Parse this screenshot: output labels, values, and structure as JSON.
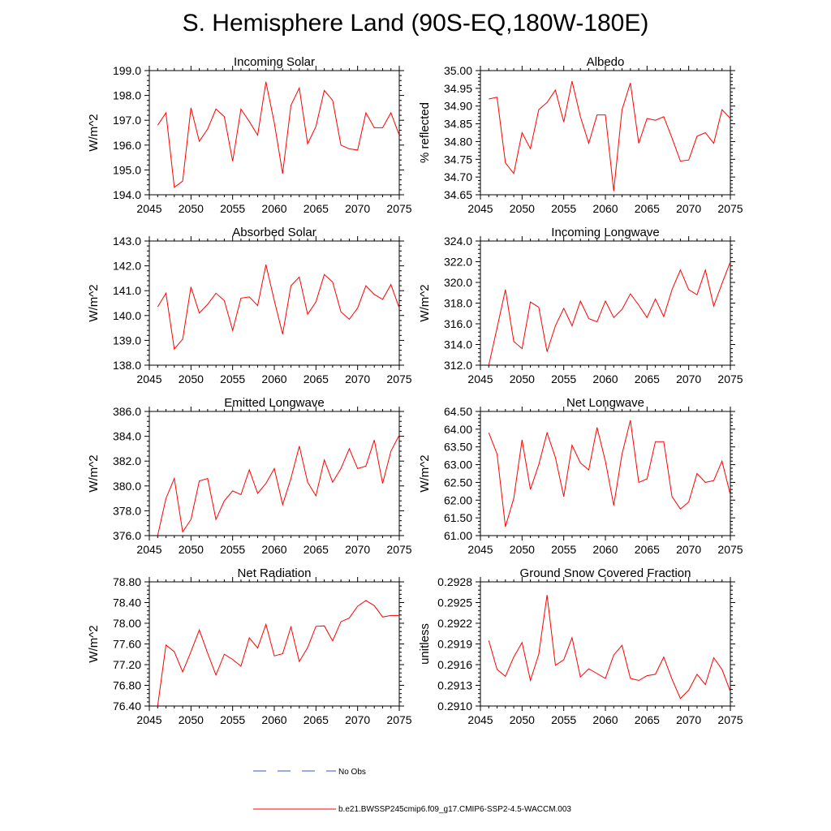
{
  "title": "S. Hemisphere Land (90S-EQ,180W-180E)",
  "colors": {
    "series": "#ff0000",
    "obs": "#3355cc",
    "axis": "#000000"
  },
  "legend": {
    "obs_label": "No Obs",
    "series_label": "b.e21.BWSSP245cmip6.f09_g17.CMIP6-SSP2-4.5-WACCM.003"
  },
  "chart_data": [
    {
      "type": "line",
      "title": "Incoming Solar",
      "ylabel": "W/m^2",
      "xlim": [
        2045,
        2075
      ],
      "ylim": [
        194.0,
        199.0
      ],
      "yticks": [
        "194.0",
        "195.0",
        "196.0",
        "197.0",
        "198.0",
        "199.0"
      ],
      "xticks": [
        "2045",
        "2050",
        "2055",
        "2060",
        "2065",
        "2070",
        "2075"
      ],
      "x": [
        2046,
        2047,
        2048,
        2049,
        2050,
        2051,
        2052,
        2053,
        2054,
        2055,
        2056,
        2057,
        2058,
        2059,
        2060,
        2061,
        2062,
        2063,
        2064,
        2065,
        2066,
        2067,
        2068,
        2069,
        2070,
        2071,
        2072,
        2073,
        2074,
        2075
      ],
      "values": [
        196.8,
        197.3,
        194.3,
        194.55,
        197.5,
        196.15,
        196.65,
        197.45,
        197.15,
        195.35,
        197.45,
        196.95,
        196.4,
        198.55,
        196.9,
        194.85,
        197.6,
        198.3,
        196.05,
        196.75,
        198.2,
        197.8,
        196.0,
        195.85,
        195.8,
        197.3,
        196.7,
        196.7,
        197.3,
        196.4
      ]
    },
    {
      "type": "line",
      "title": "Albedo",
      "ylabel": "% reflected",
      "xlim": [
        2045,
        2075
      ],
      "ylim": [
        34.65,
        35.0
      ],
      "yticks": [
        "34.65",
        "34.70",
        "34.75",
        "34.80",
        "34.85",
        "34.90",
        "34.95",
        "35.00"
      ],
      "xticks": [
        "2045",
        "2050",
        "2055",
        "2060",
        "2065",
        "2070",
        "2075"
      ],
      "x": [
        2046,
        2047,
        2048,
        2049,
        2050,
        2051,
        2052,
        2053,
        2054,
        2055,
        2056,
        2057,
        2058,
        2059,
        2060,
        2061,
        2062,
        2063,
        2064,
        2065,
        2066,
        2067,
        2068,
        2069,
        2070,
        2071,
        2072,
        2073,
        2074,
        2075
      ],
      "values": [
        34.92,
        34.925,
        34.74,
        34.71,
        34.825,
        34.78,
        34.89,
        34.91,
        34.945,
        34.855,
        34.97,
        34.87,
        34.795,
        34.875,
        34.875,
        34.66,
        34.89,
        34.965,
        34.795,
        34.865,
        34.86,
        34.87,
        34.81,
        34.745,
        34.748,
        34.815,
        34.825,
        34.795,
        34.89,
        34.865
      ]
    },
    {
      "type": "line",
      "title": "Absorbed Solar",
      "ylabel": "W/m^2",
      "xlim": [
        2045,
        2075
      ],
      "ylim": [
        138.0,
        143.0
      ],
      "yticks": [
        "138.0",
        "139.0",
        "140.0",
        "141.0",
        "142.0",
        "143.0"
      ],
      "xticks": [
        "2045",
        "2050",
        "2055",
        "2060",
        "2065",
        "2070",
        "2075"
      ],
      "x": [
        2046,
        2047,
        2048,
        2049,
        2050,
        2051,
        2052,
        2053,
        2054,
        2055,
        2056,
        2057,
        2058,
        2059,
        2060,
        2061,
        2062,
        2063,
        2064,
        2065,
        2066,
        2067,
        2068,
        2069,
        2070,
        2071,
        2072,
        2073,
        2074,
        2075
      ],
      "values": [
        140.35,
        140.9,
        138.65,
        139.05,
        141.15,
        140.1,
        140.45,
        140.9,
        140.6,
        139.4,
        140.7,
        140.75,
        140.4,
        142.05,
        140.6,
        139.25,
        141.2,
        141.55,
        140.05,
        140.55,
        141.65,
        141.35,
        140.15,
        139.85,
        140.3,
        141.2,
        140.85,
        140.65,
        141.25,
        140.3
      ]
    },
    {
      "type": "line",
      "title": "Incoming Longwave",
      "ylabel": "W/m^2",
      "xlim": [
        2045,
        2075
      ],
      "ylim": [
        312.0,
        324.0
      ],
      "yticks": [
        "312.0",
        "314.0",
        "316.0",
        "318.0",
        "320.0",
        "322.0",
        "324.0"
      ],
      "xticks": [
        "2045",
        "2050",
        "2055",
        "2060",
        "2065",
        "2070",
        "2075"
      ],
      "x": [
        2046,
        2047,
        2048,
        2049,
        2050,
        2051,
        2052,
        2053,
        2054,
        2055,
        2056,
        2057,
        2058,
        2059,
        2060,
        2061,
        2062,
        2063,
        2064,
        2065,
        2066,
        2067,
        2068,
        2069,
        2070,
        2071,
        2072,
        2073,
        2074,
        2075
      ],
      "values": [
        312.0,
        315.6,
        319.3,
        314.3,
        313.6,
        318.1,
        317.6,
        313.3,
        315.8,
        317.5,
        315.8,
        318.2,
        316.5,
        316.2,
        318.2,
        316.6,
        317.4,
        318.9,
        317.8,
        316.6,
        318.4,
        316.7,
        319.3,
        321.2,
        319.3,
        318.8,
        321.2,
        317.7,
        319.9,
        322.0
      ]
    },
    {
      "type": "line",
      "title": "Emitted Longwave",
      "ylabel": "W/m^2",
      "xlim": [
        2045,
        2075
      ],
      "ylim": [
        376.0,
        386.0
      ],
      "yticks": [
        "376.0",
        "378.0",
        "380.0",
        "382.0",
        "384.0",
        "386.0"
      ],
      "xticks": [
        "2045",
        "2050",
        "2055",
        "2060",
        "2065",
        "2070",
        "2075"
      ],
      "x": [
        2046,
        2047,
        2048,
        2049,
        2050,
        2051,
        2052,
        2053,
        2054,
        2055,
        2056,
        2057,
        2058,
        2059,
        2060,
        2061,
        2062,
        2063,
        2064,
        2065,
        2066,
        2067,
        2068,
        2069,
        2070,
        2071,
        2072,
        2073,
        2074,
        2075
      ],
      "values": [
        376.0,
        379.0,
        380.6,
        376.3,
        377.3,
        380.4,
        380.6,
        377.3,
        378.8,
        379.6,
        379.3,
        381.3,
        379.4,
        380.2,
        381.4,
        378.5,
        380.6,
        383.2,
        380.3,
        379.2,
        382.1,
        380.3,
        381.4,
        383.0,
        381.4,
        381.6,
        383.7,
        380.2,
        382.8,
        384.1
      ]
    },
    {
      "type": "line",
      "title": "Net Longwave",
      "ylabel": "W/m^2",
      "xlim": [
        2045,
        2075
      ],
      "ylim": [
        61.0,
        64.5
      ],
      "yticks": [
        "61.00",
        "61.50",
        "62.00",
        "62.50",
        "63.00",
        "63.50",
        "64.00",
        "64.50"
      ],
      "xticks": [
        "2045",
        "2050",
        "2055",
        "2060",
        "2065",
        "2070",
        "2075"
      ],
      "x": [
        2046,
        2047,
        2048,
        2049,
        2050,
        2051,
        2052,
        2053,
        2054,
        2055,
        2056,
        2057,
        2058,
        2059,
        2060,
        2061,
        2062,
        2063,
        2064,
        2065,
        2066,
        2067,
        2068,
        2069,
        2070,
        2071,
        2072,
        2073,
        2074,
        2075
      ],
      "values": [
        63.9,
        63.3,
        61.25,
        62.05,
        63.7,
        62.3,
        63.0,
        63.9,
        63.2,
        62.1,
        63.55,
        63.05,
        62.85,
        64.05,
        63.1,
        61.85,
        63.3,
        64.25,
        62.5,
        62.6,
        63.65,
        63.65,
        62.1,
        61.75,
        61.95,
        62.75,
        62.5,
        62.55,
        63.1,
        62.15
      ]
    },
    {
      "type": "line",
      "title": "Net Radiation",
      "ylabel": "W/m^2",
      "xlim": [
        2045,
        2075
      ],
      "ylim": [
        76.4,
        78.8
      ],
      "yticks": [
        "76.40",
        "76.80",
        "77.20",
        "77.60",
        "78.00",
        "78.40",
        "78.80"
      ],
      "xticks": [
        "2045",
        "2050",
        "2055",
        "2060",
        "2065",
        "2070",
        "2075"
      ],
      "x": [
        2046,
        2047,
        2048,
        2049,
        2050,
        2051,
        2052,
        2053,
        2054,
        2055,
        2056,
        2057,
        2058,
        2059,
        2060,
        2061,
        2062,
        2063,
        2064,
        2065,
        2066,
        2067,
        2068,
        2069,
        2070,
        2071,
        2072,
        2073,
        2074,
        2075
      ],
      "values": [
        76.4,
        77.58,
        77.45,
        77.06,
        77.45,
        77.87,
        77.42,
        77.0,
        77.4,
        77.3,
        77.17,
        77.72,
        77.52,
        77.98,
        77.37,
        77.41,
        77.93,
        77.26,
        77.53,
        77.94,
        77.95,
        77.66,
        78.03,
        78.1,
        78.33,
        78.44,
        78.34,
        78.12,
        78.15,
        78.15
      ]
    },
    {
      "type": "line",
      "title": "Ground Snow Covered Fraction",
      "ylabel": "unitless",
      "xlim": [
        2045,
        2075
      ],
      "ylim": [
        0.291,
        0.2928
      ],
      "yticks": [
        "0.2910",
        "0.2913",
        "0.2916",
        "0.2919",
        "0.2922",
        "0.2925",
        "0.2928"
      ],
      "xticks": [
        "2045",
        "2050",
        "2055",
        "2060",
        "2065",
        "2070",
        "2075"
      ],
      "x": [
        2046,
        2047,
        2048,
        2049,
        2050,
        2051,
        2052,
        2053,
        2054,
        2055,
        2056,
        2057,
        2058,
        2059,
        2060,
        2061,
        2062,
        2063,
        2064,
        2065,
        2066,
        2067,
        2068,
        2069,
        2070,
        2071,
        2072,
        2073,
        2074,
        2075
      ],
      "values": [
        0.29195,
        0.29153,
        0.29143,
        0.29171,
        0.29192,
        0.29137,
        0.29175,
        0.29261,
        0.29159,
        0.29167,
        0.29199,
        0.29142,
        0.29154,
        0.29147,
        0.2914,
        0.29174,
        0.29188,
        0.2914,
        0.29137,
        0.29144,
        0.29146,
        0.29171,
        0.29139,
        0.29111,
        0.29123,
        0.29146,
        0.29131,
        0.2917,
        0.29153,
        0.29121
      ]
    }
  ]
}
